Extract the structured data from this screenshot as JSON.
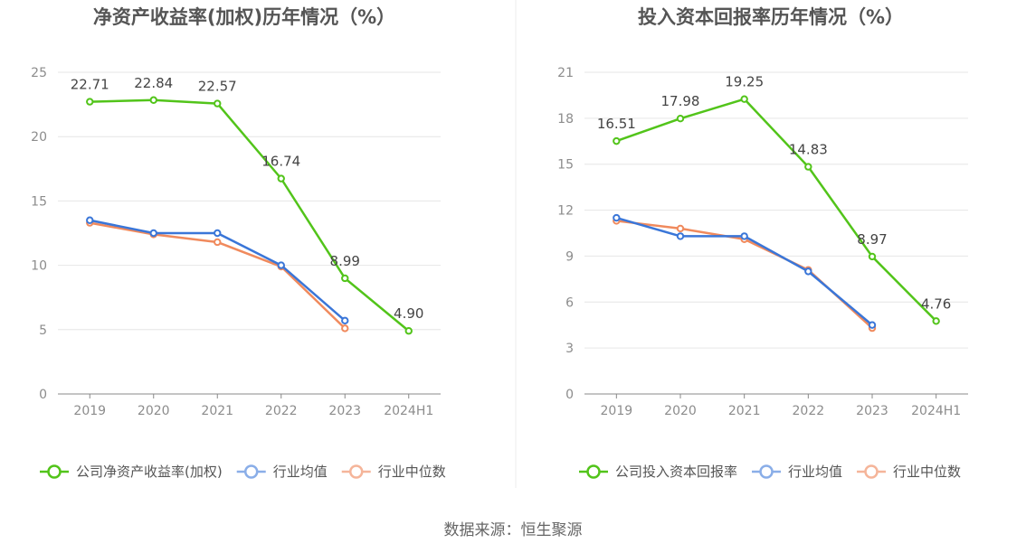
{
  "charts": [
    {
      "title": "净资产收益率(加权)历年情况（%）",
      "categories": [
        "2019",
        "2020",
        "2021",
        "2022",
        "2023",
        "2024H1"
      ],
      "y_ticks": [
        "0",
        "5",
        "10",
        "15",
        "20",
        "25"
      ],
      "legend": [
        "公司净资产收益率(加权)",
        "行业均值",
        "行业中位数"
      ]
    },
    {
      "title": "投入资本回报率历年情况（%）",
      "categories": [
        "2019",
        "2020",
        "2021",
        "2022",
        "2023",
        "2024H1"
      ],
      "y_ticks": [
        "0",
        "3",
        "6",
        "9",
        "12",
        "15",
        "18",
        "21"
      ],
      "legend": [
        "公司投入资本回报率",
        "行业均值",
        "行业中位数"
      ]
    }
  ],
  "source": "数据来源：恒生聚源",
  "chart_data": [
    {
      "type": "line",
      "title": "净资产收益率(加权)历年情况（%）",
      "categories": [
        "2019",
        "2020",
        "2021",
        "2022",
        "2023",
        "2024H1"
      ],
      "ylim": [
        0,
        25
      ],
      "grid": true,
      "legend_position": "bottom",
      "series": [
        {
          "name": "公司净资产收益率(加权)",
          "color": "#52c41a",
          "values": [
            22.71,
            22.84,
            22.57,
            16.74,
            8.99,
            4.9
          ],
          "labels": [
            "22.71",
            "22.84",
            "22.57",
            "16.74",
            "8.99",
            "4.90"
          ]
        },
        {
          "name": "行业均值",
          "color": "#3a76d8",
          "values": [
            13.5,
            12.5,
            12.5,
            10.0,
            5.7,
            null
          ]
        },
        {
          "name": "行业中位数",
          "color": "#f08a5d",
          "values": [
            13.3,
            12.4,
            11.8,
            9.9,
            5.1,
            null
          ]
        }
      ]
    },
    {
      "type": "line",
      "title": "投入资本回报率历年情况（%）",
      "categories": [
        "2019",
        "2020",
        "2021",
        "2022",
        "2023",
        "2024H1"
      ],
      "ylim": [
        0,
        21
      ],
      "grid": true,
      "legend_position": "bottom",
      "series": [
        {
          "name": "公司投入资本回报率",
          "color": "#52c41a",
          "values": [
            16.51,
            17.98,
            19.25,
            14.83,
            8.97,
            4.76
          ],
          "labels": [
            "16.51",
            "17.98",
            "19.25",
            "14.83",
            "8.97",
            "4.76"
          ]
        },
        {
          "name": "行业均值",
          "color": "#3a76d8",
          "values": [
            11.5,
            10.3,
            10.3,
            8.0,
            4.5,
            null
          ]
        },
        {
          "name": "行业中位数",
          "color": "#f08a5d",
          "values": [
            11.3,
            10.8,
            10.1,
            8.1,
            4.3,
            null
          ]
        }
      ]
    }
  ]
}
